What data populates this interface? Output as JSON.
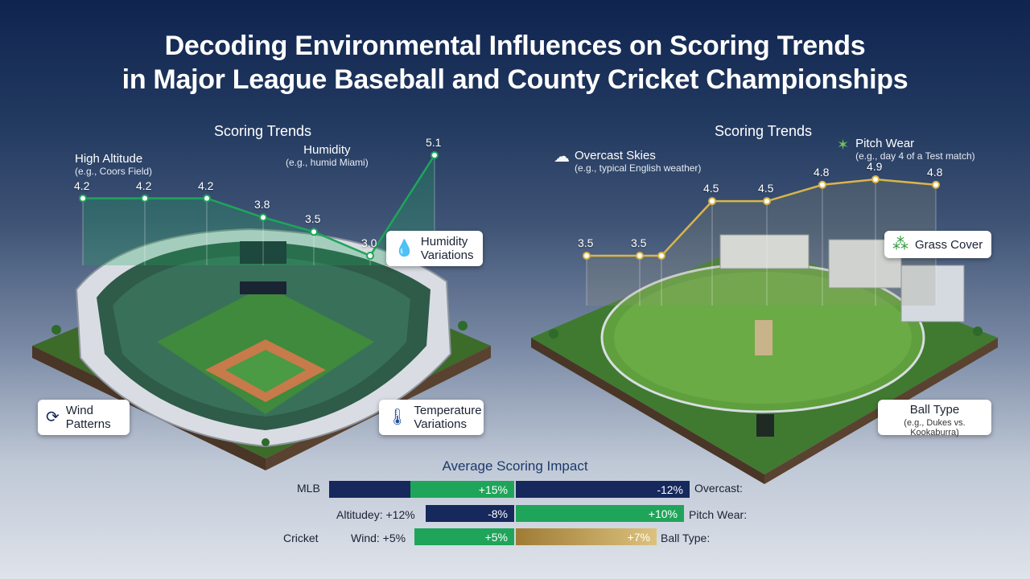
{
  "title": {
    "line1": "Decoding Environmental Influences on Scoring Trends",
    "line2": "in Major League Baseball and County Cricket Championships"
  },
  "colors": {
    "navy": "#16285c",
    "green": "#1fa55a",
    "gold": "#c9a95c",
    "mlb_line": "#1fa55a",
    "cricket_line": "#d9b54a"
  },
  "mlb_panel": {
    "title": "Scoring Trends",
    "annotations": [
      {
        "title": "High Altitude",
        "sub": "(e.g., Coors Field)"
      },
      {
        "title": "Humidity",
        "sub": "(e.g., humid Miami)"
      }
    ],
    "callouts": [
      {
        "icon": "water-drop-icon",
        "glyph": "💧",
        "label_line1": "Humidity",
        "label_line2": "Variations"
      },
      {
        "icon": "wind-icon",
        "glyph": "⟳",
        "label_line1": "Wind",
        "label_line2": "Patterns"
      },
      {
        "icon": "thermometer-icon",
        "glyph": "🌡",
        "label_line1": "Temperature",
        "label_line2": "Variations"
      }
    ]
  },
  "cricket_panel": {
    "title": "Scoring Trends",
    "annotations": [
      {
        "title": "Overcast Skies",
        "sub": "(e.g., typical English weather)"
      },
      {
        "title": "Pitch Wear",
        "sub": "(e.g., day 4 of a Test match)"
      }
    ],
    "callouts": [
      {
        "icon": "grass-icon",
        "glyph": "⁂",
        "label": "Grass Cover"
      },
      {
        "label_title": "Ball Type",
        "label_sub": "(e.g., Dukes vs. Kookaburra)"
      }
    ]
  },
  "chart_data": [
    {
      "type": "line",
      "title": "Scoring Trends",
      "series": [
        {
          "values": [
            4.2,
            4.2,
            4.2,
            3.8,
            3.5,
            3.0,
            5.1
          ]
        }
      ],
      "data_labels": [
        "4.2",
        "4.2",
        "4.2",
        "3.8",
        "3.5",
        "3.0",
        "5.1"
      ]
    },
    {
      "type": "line",
      "title": "Scoring Trends",
      "series": [
        {
          "values": [
            3.5,
            3.5,
            3.5,
            4.5,
            4.5,
            4.8,
            4.9,
            4.8
          ]
        }
      ],
      "data_labels": [
        "3.5",
        "3.5",
        "",
        "4.5",
        "4.5",
        "4.8",
        "4.9",
        "4.8"
      ]
    },
    {
      "type": "bar",
      "title": "Average Scoring Impact",
      "rows": [
        {
          "left_label": "MLB",
          "left_value_label": "+15%",
          "left_value": 15,
          "right_value_label": "-12%",
          "right_value": -12,
          "right_label": "Overcast:"
        },
        {
          "left_label": "Altitudey: +12%",
          "left_value_label": "-8%",
          "left_value": -8,
          "right_value_label": "+10%",
          "right_value": 10,
          "right_label": "Pitch Wear:"
        },
        {
          "left_label": "Cricket",
          "left_sub_label": "Wind: +5%",
          "left_value_label": "+5%",
          "left_value": 5,
          "right_value_label": "+7%",
          "right_value": 7,
          "right_label": "Ball Type:"
        }
      ]
    }
  ]
}
